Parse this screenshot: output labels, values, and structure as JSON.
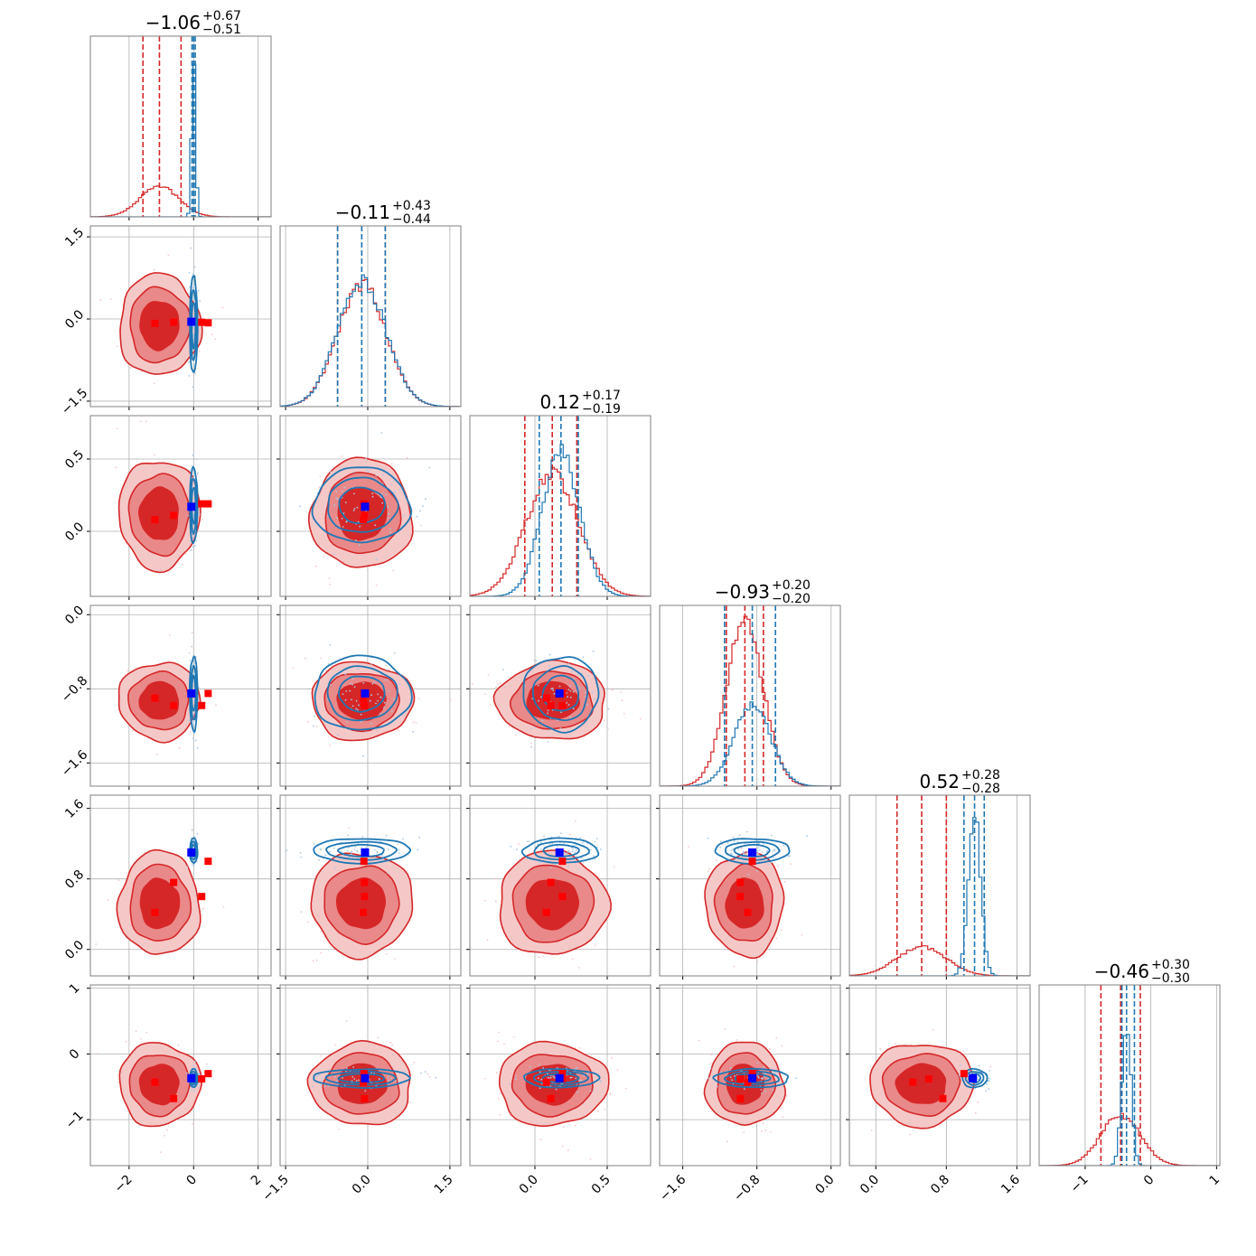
{
  "colors": {
    "red": "#d62728",
    "red_mid": "#ea8989",
    "red_light": "#f5c8c8",
    "blue": "#1f77b4",
    "marker_blue": "#0000ff",
    "marker_red": "#ff0000",
    "grid": "#b0b0b0",
    "frame": "#808080"
  },
  "chart_data": {
    "type": "corner",
    "n_params": 6,
    "titles": [
      {
        "median": "−1.06",
        "plus": "+0.67",
        "minus": "−0.51"
      },
      {
        "median": "−0.11",
        "plus": "+0.43",
        "minus": "−0.44"
      },
      {
        "median": "0.12",
        "plus": "+0.17",
        "minus": "−0.19"
      },
      {
        "median": "−0.93",
        "plus": "+0.20",
        "minus": "−0.20"
      },
      {
        "median": "0.52",
        "plus": "+0.28",
        "minus": "−0.28"
      },
      {
        "median": "−0.46",
        "plus": "+0.30",
        "minus": "−0.30"
      }
    ],
    "ranges": [
      [
        -3.2,
        2.4
      ],
      [
        -1.6,
        1.7
      ],
      [
        -0.45,
        0.8
      ],
      [
        -1.85,
        0.1
      ],
      [
        -0.3,
        1.75
      ],
      [
        -1.7,
        1.05
      ]
    ],
    "ticks": [
      {
        "values": [
          -2,
          0,
          2
        ],
        "labels": [
          "−2",
          "0",
          "2"
        ]
      },
      {
        "values": [
          -1.5,
          0.0,
          1.5
        ],
        "labels": [
          "−1.5",
          "0.0",
          "1.5"
        ]
      },
      {
        "values": [
          0.0,
          0.5
        ],
        "labels": [
          "0.0",
          "0.5"
        ]
      },
      {
        "values": [
          -1.6,
          -0.8,
          0.0
        ],
        "labels": [
          "−1.6",
          "−0.8",
          "0.0"
        ]
      },
      {
        "values": [
          0.0,
          0.8,
          1.6
        ],
        "labels": [
          "0.0",
          "0.8",
          "1.6"
        ]
      },
      {
        "values": [
          -1,
          0,
          1
        ],
        "labels": [
          "−1",
          "0",
          "1"
        ]
      }
    ],
    "series": [
      {
        "color": "red",
        "means": [
          -1.06,
          -0.11,
          0.12,
          -0.93,
          0.52,
          -0.46
        ],
        "sigmas": [
          0.6,
          0.44,
          0.18,
          0.2,
          0.28,
          0.3
        ],
        "quantiles": [
          [
            -1.57,
            -1.06,
            -0.39
          ],
          [
            -0.55,
            -0.11,
            0.32
          ],
          [
            -0.07,
            0.12,
            0.29
          ],
          [
            -1.13,
            -0.93,
            -0.73
          ],
          [
            0.24,
            0.52,
            0.8
          ],
          [
            -0.76,
            -0.46,
            -0.16
          ]
        ],
        "peaks": [
          0.17,
          0.68,
          0.68,
          0.9,
          0.16,
          0.28
        ]
      },
      {
        "color": "blue",
        "means": [
          0.0,
          -0.11,
          0.18,
          -0.85,
          1.12,
          -0.37
        ],
        "sigmas": [
          0.06,
          0.44,
          0.13,
          0.2,
          0.07,
          0.07
        ],
        "quantiles": [
          [
            -0.05,
            0.0,
            0.05
          ],
          [
            -0.55,
            -0.11,
            0.32
          ],
          [
            0.03,
            0.18,
            0.3
          ],
          [
            -1.15,
            -0.85,
            -0.6
          ],
          [
            1.0,
            1.12,
            1.23
          ],
          [
            -0.44,
            -0.37,
            -0.25
          ]
        ],
        "peaks": [
          0.92,
          0.7,
          0.8,
          0.45,
          0.9,
          0.78
        ]
      }
    ],
    "markers": {
      "blue": [
        -0.07,
        -0.05,
        0.17,
        -0.85,
        1.1,
        -0.37
      ],
      "red": [
        [
          -1.2,
          -0.08,
          0.08,
          -0.9,
          0.42,
          -0.43
        ],
        [
          -0.62,
          -0.06,
          0.11,
          -0.98,
          0.76,
          -0.68
        ],
        [
          0.25,
          -0.06,
          0.19,
          -0.98,
          0.6,
          -0.38
        ],
        [
          0.45,
          -0.07,
          0.19,
          -0.85,
          1.0,
          -0.3
        ]
      ]
    }
  }
}
